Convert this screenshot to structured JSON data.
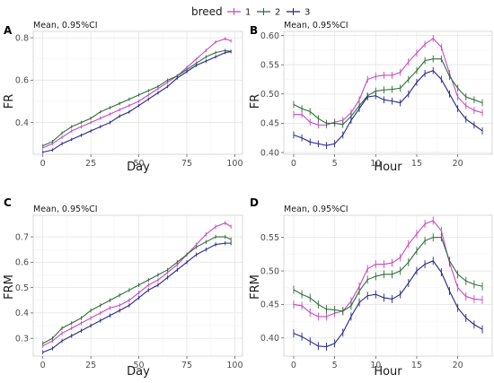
{
  "legend": {
    "title": "breed",
    "entries": [
      {
        "label": "1",
        "color": "#c548c2"
      },
      {
        "label": "2",
        "color": "#2e6e36"
      },
      {
        "label": "3",
        "color": "#26268a"
      }
    ]
  },
  "chart_data": [
    {
      "panel": "A",
      "type": "line",
      "subtitle": "Mean, 0.95%CI",
      "xlabel": "Day",
      "ylabel": "FR",
      "xlim": [
        -5,
        104
      ],
      "ylim": [
        0.25,
        0.83
      ],
      "xticks": [
        0,
        25,
        50,
        75,
        100
      ],
      "xtick_labels": [
        "0",
        "25",
        "50",
        "75",
        "100"
      ],
      "yticks": [
        0.4,
        0.6,
        0.8
      ],
      "ytick_labels": [
        "0.4",
        "0.6",
        "0.8"
      ],
      "grid": true,
      "error_bar_halfwidth": 0.008,
      "series": [
        {
          "name": "1",
          "color": "#c548c2",
          "x": [
            0,
            5,
            10,
            15,
            20,
            25,
            30,
            35,
            40,
            45,
            50,
            55,
            60,
            65,
            70,
            75,
            80,
            85,
            90,
            95,
            98
          ],
          "y": [
            0.28,
            0.3,
            0.33,
            0.36,
            0.38,
            0.4,
            0.42,
            0.44,
            0.46,
            0.48,
            0.5,
            0.53,
            0.56,
            0.59,
            0.62,
            0.66,
            0.7,
            0.74,
            0.78,
            0.795,
            0.785
          ]
        },
        {
          "name": "2",
          "color": "#2e6e36",
          "x": [
            0,
            5,
            10,
            15,
            20,
            25,
            30,
            35,
            40,
            45,
            50,
            55,
            60,
            65,
            70,
            75,
            80,
            85,
            90,
            95,
            98
          ],
          "y": [
            0.29,
            0.31,
            0.35,
            0.38,
            0.4,
            0.42,
            0.45,
            0.47,
            0.49,
            0.51,
            0.53,
            0.55,
            0.57,
            0.6,
            0.62,
            0.65,
            0.68,
            0.71,
            0.73,
            0.74,
            0.735
          ]
        },
        {
          "name": "3",
          "color": "#26268a",
          "x": [
            0,
            5,
            10,
            15,
            20,
            25,
            30,
            35,
            40,
            45,
            50,
            55,
            60,
            65,
            70,
            75,
            80,
            85,
            90,
            95,
            98
          ],
          "y": [
            0.26,
            0.27,
            0.3,
            0.32,
            0.34,
            0.36,
            0.38,
            0.4,
            0.43,
            0.45,
            0.48,
            0.51,
            0.54,
            0.57,
            0.61,
            0.64,
            0.67,
            0.69,
            0.71,
            0.73,
            0.735
          ]
        }
      ]
    },
    {
      "panel": "B",
      "type": "line",
      "subtitle": "Mean, 0.95%CI",
      "xlabel": "Hour",
      "ylabel": "FR",
      "xlim": [
        -1.2,
        24.2
      ],
      "ylim": [
        0.397,
        0.607
      ],
      "xticks": [
        0,
        5,
        10,
        15,
        20
      ],
      "xtick_labels": [
        "0",
        "5",
        "10",
        "15",
        "20"
      ],
      "yticks": [
        0.4,
        0.45,
        0.5,
        0.55,
        0.6
      ],
      "ytick_labels": [
        "0.40",
        "0.45",
        "0.50",
        "0.55",
        "0.60"
      ],
      "grid": true,
      "error_bar_halfwidth": 0.006,
      "series": [
        {
          "name": "1",
          "color": "#c548c2",
          "x": [
            0,
            1,
            2,
            3,
            4,
            5,
            6,
            7,
            8,
            9,
            10,
            11,
            12,
            13,
            14,
            15,
            16,
            17,
            18,
            19,
            20,
            21,
            22,
            23
          ],
          "y": [
            0.465,
            0.465,
            0.452,
            0.447,
            0.447,
            0.452,
            0.455,
            0.468,
            0.49,
            0.525,
            0.53,
            0.532,
            0.532,
            0.537,
            0.555,
            0.57,
            0.585,
            0.595,
            0.58,
            0.535,
            0.495,
            0.48,
            0.472,
            0.468
          ]
        },
        {
          "name": "2",
          "color": "#2e6e36",
          "x": [
            0,
            1,
            2,
            3,
            4,
            5,
            6,
            7,
            8,
            9,
            10,
            11,
            12,
            13,
            14,
            15,
            16,
            17,
            18,
            19,
            20,
            21,
            22,
            23
          ],
          "y": [
            0.482,
            0.475,
            0.47,
            0.458,
            0.45,
            0.45,
            0.448,
            0.462,
            0.48,
            0.497,
            0.505,
            0.507,
            0.508,
            0.51,
            0.525,
            0.54,
            0.557,
            0.56,
            0.56,
            0.53,
            0.51,
            0.495,
            0.49,
            0.485
          ]
        },
        {
          "name": "3",
          "color": "#26268a",
          "x": [
            0,
            1,
            2,
            3,
            4,
            5,
            6,
            7,
            8,
            9,
            10,
            11,
            12,
            13,
            14,
            15,
            16,
            17,
            18,
            19,
            20,
            21,
            22,
            23
          ],
          "y": [
            0.43,
            0.425,
            0.418,
            0.415,
            0.412,
            0.415,
            0.43,
            0.455,
            0.475,
            0.495,
            0.497,
            0.49,
            0.488,
            0.485,
            0.5,
            0.52,
            0.535,
            0.54,
            0.525,
            0.5,
            0.475,
            0.457,
            0.447,
            0.437
          ]
        }
      ]
    },
    {
      "panel": "C",
      "type": "line",
      "subtitle": "Mean, 0.95%CI",
      "xlabel": "Day",
      "ylabel": "FRM",
      "xlim": [
        -5,
        104
      ],
      "ylim": [
        0.23,
        0.785
      ],
      "xticks": [
        0,
        25,
        50,
        75,
        100
      ],
      "xtick_labels": [
        "0",
        "25",
        "50",
        "75",
        "100"
      ],
      "yticks": [
        0.3,
        0.4,
        0.5,
        0.6,
        0.7
      ],
      "ytick_labels": [
        "0.3",
        "0.4",
        "0.5",
        "0.6",
        "0.7"
      ],
      "grid": true,
      "error_bar_halfwidth": 0.008,
      "series": [
        {
          "name": "1",
          "color": "#c548c2",
          "x": [
            0,
            5,
            10,
            15,
            20,
            25,
            30,
            35,
            40,
            45,
            50,
            55,
            60,
            65,
            70,
            75,
            80,
            85,
            90,
            95,
            98
          ],
          "y": [
            0.27,
            0.29,
            0.32,
            0.34,
            0.36,
            0.38,
            0.4,
            0.42,
            0.43,
            0.45,
            0.48,
            0.51,
            0.53,
            0.56,
            0.59,
            0.63,
            0.67,
            0.71,
            0.74,
            0.755,
            0.74
          ]
        },
        {
          "name": "2",
          "color": "#2e6e36",
          "x": [
            0,
            5,
            10,
            15,
            20,
            25,
            30,
            35,
            40,
            45,
            50,
            55,
            60,
            65,
            70,
            75,
            80,
            85,
            90,
            95,
            98
          ],
          "y": [
            0.28,
            0.3,
            0.34,
            0.36,
            0.38,
            0.41,
            0.43,
            0.45,
            0.47,
            0.49,
            0.51,
            0.53,
            0.55,
            0.57,
            0.6,
            0.63,
            0.66,
            0.68,
            0.7,
            0.7,
            0.69
          ]
        },
        {
          "name": "3",
          "color": "#26268a",
          "x": [
            0,
            5,
            10,
            15,
            20,
            25,
            30,
            35,
            40,
            45,
            50,
            55,
            60,
            65,
            70,
            75,
            80,
            85,
            90,
            95,
            98
          ],
          "y": [
            0.245,
            0.26,
            0.29,
            0.31,
            0.33,
            0.35,
            0.37,
            0.39,
            0.41,
            0.43,
            0.46,
            0.49,
            0.51,
            0.54,
            0.57,
            0.6,
            0.63,
            0.65,
            0.67,
            0.675,
            0.675
          ]
        }
      ]
    },
    {
      "panel": "D",
      "type": "line",
      "subtitle": "Mean, 0.95%CI",
      "xlabel": "Hour",
      "ylabel": "FRM",
      "xlim": [
        -1.2,
        24.2
      ],
      "ylim": [
        0.373,
        0.583
      ],
      "xticks": [
        0,
        5,
        10,
        15,
        20
      ],
      "xtick_labels": [
        "0",
        "5",
        "10",
        "15",
        "20"
      ],
      "yticks": [
        0.4,
        0.45,
        0.5,
        0.55
      ],
      "ytick_labels": [
        "0.40",
        "0.45",
        "0.50",
        "0.55"
      ],
      "grid": true,
      "error_bar_halfwidth": 0.006,
      "series": [
        {
          "name": "1",
          "color": "#c548c2",
          "x": [
            0,
            1,
            2,
            3,
            4,
            5,
            6,
            7,
            8,
            9,
            10,
            11,
            12,
            13,
            14,
            15,
            16,
            17,
            18,
            19,
            20,
            21,
            22,
            23
          ],
          "y": [
            0.45,
            0.448,
            0.438,
            0.432,
            0.432,
            0.437,
            0.44,
            0.455,
            0.477,
            0.503,
            0.51,
            0.51,
            0.512,
            0.52,
            0.54,
            0.555,
            0.57,
            0.575,
            0.56,
            0.512,
            0.475,
            0.462,
            0.458,
            0.457
          ]
        },
        {
          "name": "2",
          "color": "#2e6e36",
          "x": [
            0,
            1,
            2,
            3,
            4,
            5,
            6,
            7,
            8,
            9,
            10,
            11,
            12,
            13,
            14,
            15,
            16,
            17,
            18,
            19,
            20,
            21,
            22,
            23
          ],
          "y": [
            0.472,
            0.465,
            0.46,
            0.45,
            0.443,
            0.442,
            0.44,
            0.448,
            0.47,
            0.487,
            0.492,
            0.495,
            0.495,
            0.5,
            0.513,
            0.53,
            0.545,
            0.55,
            0.55,
            0.515,
            0.495,
            0.485,
            0.48,
            0.477
          ]
        },
        {
          "name": "3",
          "color": "#26268a",
          "x": [
            0,
            1,
            2,
            3,
            4,
            5,
            6,
            7,
            8,
            9,
            10,
            11,
            12,
            13,
            14,
            15,
            16,
            17,
            18,
            19,
            20,
            21,
            22,
            23
          ],
          "y": [
            0.407,
            0.402,
            0.395,
            0.388,
            0.387,
            0.392,
            0.408,
            0.432,
            0.453,
            0.463,
            0.465,
            0.46,
            0.458,
            0.465,
            0.482,
            0.5,
            0.51,
            0.515,
            0.498,
            0.47,
            0.445,
            0.43,
            0.42,
            0.413
          ]
        }
      ]
    }
  ]
}
